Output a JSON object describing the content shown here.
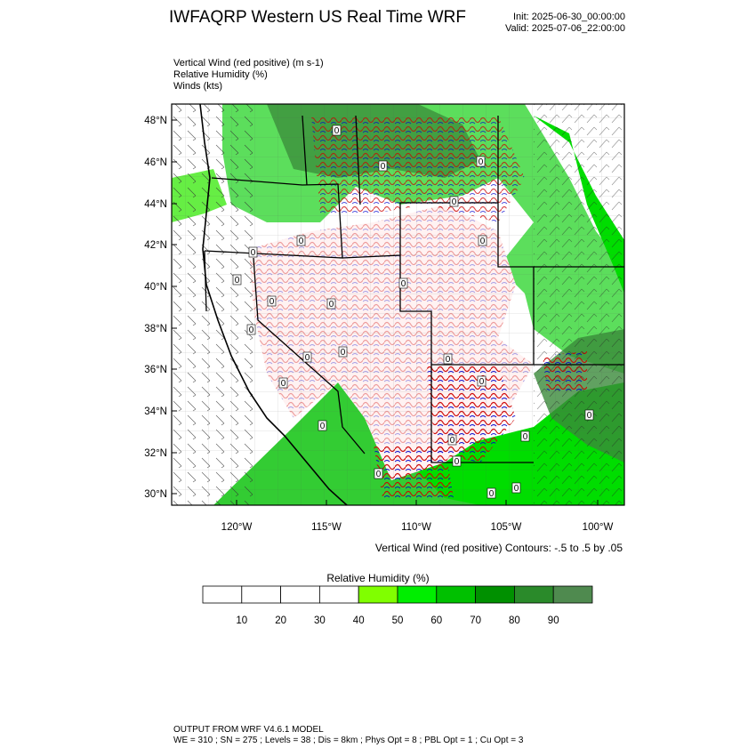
{
  "header": {
    "title": "IWFAQRP Western US Real Time WRF",
    "init": "Init: 2025-06-30_00:00:00",
    "valid": "Valid: 2025-07-06_22:00:00"
  },
  "fields": [
    "Vertical Wind (red positive)   (m s-1)",
    "Relative Humidity   (%)",
    "Winds   (kts)"
  ],
  "map": {
    "lat_labels": [
      "48°N",
      "46°N",
      "44°N",
      "42°N",
      "40°N",
      "38°N",
      "36°N",
      "34°N",
      "32°N",
      "30°N"
    ],
    "lon_labels": [
      "120°W",
      "115°W",
      "110°W",
      "105°W",
      "100°W"
    ],
    "contour_label": "0"
  },
  "contour_note": "Vertical Wind (red positive) Contours: -.5 to .5 by .05",
  "colorbar": {
    "title": "Relative Humidity  (%)",
    "ticks": [
      "10",
      "20",
      "30",
      "40",
      "50",
      "60",
      "70",
      "80",
      "90"
    ],
    "colors": [
      "#ffffff",
      "#ffffff",
      "#ffffff",
      "#ffffff",
      "#80ff00",
      "#00ee00",
      "#00c000",
      "#009000",
      "#2a8a2a",
      "#4f8a4f"
    ]
  },
  "footer": {
    "line1": "OUTPUT FROM WRF V4.6.1 MODEL",
    "line2": "WE = 310 ; SN = 275 ; Levels = 38 ; Dis = 8km ; Phys Opt = 8 ; PBL Opt = 1 ; Cu Opt = 3"
  },
  "colors": {
    "rh_high": "#00dd00",
    "rh_mid": "#66ee44",
    "rh_dark": "#3a8a3a",
    "vertical_up": "#cc0000",
    "vertical_down": "#0000cc"
  }
}
